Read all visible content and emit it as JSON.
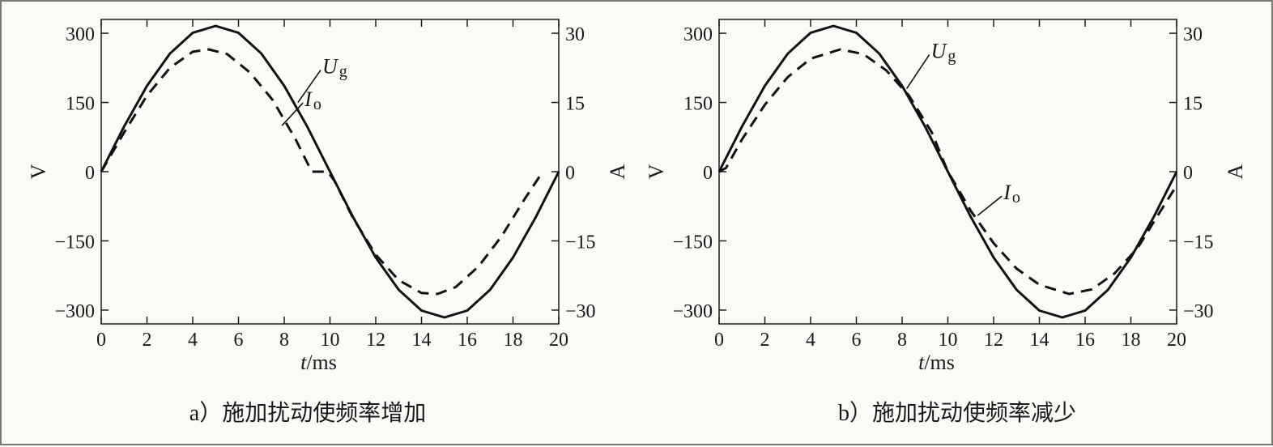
{
  "chart_data": [
    {
      "type": "line",
      "caption": "a）施加扰动使频率增加",
      "xlabel_var": "t",
      "xlabel_unit": "/ms",
      "ylabel_left": "V",
      "ylabel_right": "A",
      "xlim": [
        0,
        20
      ],
      "ylim_left": [
        -330,
        330
      ],
      "ylim_right": [
        -33,
        33
      ],
      "x_ticks": [
        0,
        2,
        4,
        6,
        8,
        10,
        12,
        14,
        16,
        18,
        20
      ],
      "y_left_ticks": [
        300,
        150,
        0,
        -150,
        -300
      ],
      "y_left_tick_labels": [
        "300",
        "150",
        "0",
        "−150",
        "−300"
      ],
      "y_right_ticks": [
        30,
        15,
        0,
        -15,
        -30
      ],
      "y_right_tick_labels": [
        "30",
        "15",
        "0",
        "−15",
        "−30"
      ],
      "grid": false,
      "series": [
        {
          "name": "U",
          "subscript": "g",
          "axis": "left",
          "style": "solid",
          "x": [
            0,
            1,
            2,
            3,
            4,
            5,
            6,
            7,
            8,
            9,
            10,
            11,
            12,
            13,
            14,
            15,
            16,
            17,
            18,
            19,
            20
          ],
          "values": [
            0,
            98,
            186,
            256,
            301,
            316,
            301,
            256,
            186,
            98,
            0,
            -98,
            -186,
            -256,
            -301,
            -316,
            -301,
            -256,
            -186,
            -98,
            0
          ]
        },
        {
          "name": "I",
          "subscript": "o",
          "axis": "right",
          "style": "dashed",
          "x": [
            0,
            1,
            2,
            3,
            4,
            4.7,
            5.5,
            6.5,
            7.5,
            8.5,
            9.2,
            9.9,
            10.2,
            11,
            12,
            13,
            14,
            14.7,
            15.5,
            16.5,
            17.5,
            18.5,
            19.3
          ],
          "values": [
            0,
            8.5,
            16.5,
            22.5,
            26.0,
            26.5,
            25.5,
            21.5,
            15.5,
            7.0,
            0,
            0,
            -2.0,
            -10.0,
            -18.0,
            -23.5,
            -26.3,
            -26.5,
            -25.0,
            -20.5,
            -14.0,
            -6.0,
            0
          ]
        }
      ],
      "annotations": [
        {
          "series": "U",
          "at_x": 8.6,
          "at_y": 150
        },
        {
          "series": "I",
          "at_x": 7.9,
          "at_y": 100
        }
      ]
    },
    {
      "type": "line",
      "caption": "b）施加扰动使频率减少",
      "xlabel_var": "t",
      "xlabel_unit": "/ms",
      "ylabel_left": "V",
      "ylabel_right": "A",
      "xlim": [
        0,
        20
      ],
      "ylim_left": [
        -330,
        330
      ],
      "ylim_right": [
        -33,
        33
      ],
      "x_ticks": [
        0,
        2,
        4,
        6,
        8,
        10,
        12,
        14,
        16,
        18,
        20
      ],
      "y_left_ticks": [
        300,
        150,
        0,
        -150,
        -300
      ],
      "y_left_tick_labels": [
        "300",
        "150",
        "0",
        "−150",
        "−300"
      ],
      "y_right_ticks": [
        30,
        15,
        0,
        -15,
        -30
      ],
      "y_right_tick_labels": [
        "30",
        "15",
        "0",
        "−15",
        "−30"
      ],
      "grid": false,
      "series": [
        {
          "name": "U",
          "subscript": "g",
          "axis": "left",
          "style": "solid",
          "x": [
            0,
            1,
            2,
            3,
            4,
            5,
            6,
            7,
            8,
            9,
            10,
            11,
            12,
            13,
            14,
            15,
            16,
            17,
            18,
            19,
            20
          ],
          "values": [
            0,
            98,
            186,
            256,
            301,
            316,
            301,
            256,
            186,
            98,
            0,
            -98,
            -186,
            -256,
            -301,
            -316,
            -301,
            -256,
            -186,
            -98,
            0
          ]
        },
        {
          "name": "I",
          "subscript": "o",
          "axis": "right",
          "style": "dashed",
          "x": [
            0,
            0.3,
            1,
            2,
            3,
            4,
            5.3,
            6.3,
            7.3,
            8.3,
            9.3,
            10,
            10.3,
            11,
            12,
            13,
            14,
            15.3,
            16.3,
            17.3,
            18.3,
            19.3,
            20
          ],
          "values": [
            0,
            0.8,
            7.0,
            14.5,
            20.5,
            24.5,
            26.5,
            25.5,
            22.0,
            16.5,
            8.5,
            0,
            -2.5,
            -8.5,
            -15.5,
            -21.0,
            -24.5,
            -26.5,
            -25.5,
            -22.0,
            -16.5,
            -8.5,
            -3.0
          ]
        }
      ],
      "annotations": [
        {
          "series": "U",
          "at_x": 8.2,
          "at_y": 180
        },
        {
          "series": "I",
          "at_x": 11.3,
          "at_y": -95
        }
      ]
    }
  ]
}
